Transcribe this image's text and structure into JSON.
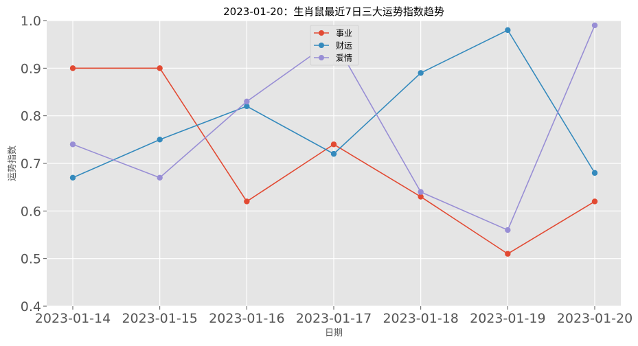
{
  "chart_data": {
    "type": "line",
    "title": "2023-01-20：生肖鼠最近7日三大运势指数趋势",
    "xlabel": "日期",
    "ylabel": "运势指数",
    "categories": [
      "2023-01-14",
      "2023-01-15",
      "2023-01-16",
      "2023-01-17",
      "2023-01-18",
      "2023-01-19",
      "2023-01-20"
    ],
    "ylim": [
      0.4,
      1.0
    ],
    "yticks": [
      "0.4",
      "0.5",
      "0.6",
      "0.7",
      "0.8",
      "0.9",
      "1.0"
    ],
    "grid": true,
    "legend_position": "top-center",
    "series": [
      {
        "name": "事业",
        "color": "#E24A33",
        "values": [
          0.9,
          0.9,
          0.62,
          0.74,
          0.63,
          0.51,
          0.62
        ]
      },
      {
        "name": "财运",
        "color": "#348ABD",
        "values": [
          0.67,
          0.75,
          0.82,
          0.72,
          0.89,
          0.98,
          0.68
        ]
      },
      {
        "name": "爱情",
        "color": "#988ED5",
        "values": [
          0.74,
          0.67,
          0.83,
          0.96,
          0.64,
          0.56,
          0.99
        ]
      }
    ]
  }
}
